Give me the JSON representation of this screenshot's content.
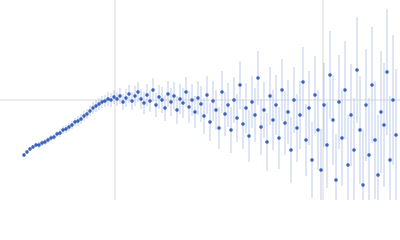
{
  "chart_data": {
    "type": "scatter",
    "xlim": [
      0,
      400
    ],
    "ylim": [
      0,
      200
    ],
    "xgrid": [
      115,
      323
    ],
    "ygrid": [
      100
    ],
    "color": "#3a62b8",
    "error_color": "#bccbe8",
    "x": [
      24,
      27,
      30,
      33,
      36,
      39,
      42,
      45,
      48,
      51,
      54,
      57,
      60,
      63,
      66,
      69,
      72,
      75,
      78,
      81,
      84,
      87,
      90,
      93,
      96,
      99,
      102,
      105,
      108,
      111,
      114,
      117,
      120,
      123,
      126,
      129,
      132,
      135,
      138,
      141,
      144,
      147,
      150,
      153,
      156,
      159,
      162,
      165,
      168,
      171,
      174,
      177,
      180,
      183,
      186,
      189,
      192,
      195,
      198,
      201,
      204,
      207,
      210,
      213,
      216,
      219,
      222,
      225,
      228,
      231,
      234,
      237,
      240,
      243,
      246,
      249,
      252,
      255,
      258,
      261,
      264,
      267,
      270,
      273,
      276,
      279,
      282,
      285,
      288,
      291,
      294,
      297,
      300,
      303,
      306,
      309,
      312,
      315,
      318,
      321,
      324,
      327,
      330,
      333,
      336,
      339,
      342,
      345,
      348,
      351,
      354,
      357,
      360,
      363,
      366,
      369,
      372,
      375,
      378,
      381,
      384,
      387,
      390,
      393,
      396
    ],
    "values": [
      45,
      48,
      51,
      53,
      55,
      55,
      57,
      58,
      60,
      62,
      63,
      66,
      67,
      70,
      71,
      73,
      75,
      78,
      79,
      81,
      84,
      86,
      89,
      92,
      94,
      96,
      98,
      99,
      101,
      100,
      103,
      101,
      104,
      98,
      102,
      106,
      99,
      104,
      108,
      101,
      97,
      105,
      99,
      110,
      95,
      103,
      100,
      92,
      106,
      98,
      104,
      90,
      101,
      97,
      108,
      93,
      100,
      88,
      102,
      96,
      84,
      105,
      78,
      99,
      90,
      72,
      108,
      86,
      95,
      70,
      100,
      82,
      115,
      76,
      92,
      64,
      98,
      85,
      122,
      73,
      90,
      58,
      104,
      80,
      95,
      62,
      110,
      77,
      88,
      50,
      100,
      72,
      85,
      118,
      60,
      92,
      40,
      105,
      70,
      30,
      95,
      55,
      125,
      80,
      20,
      98,
      62,
      110,
      35,
      85,
      50,
      130,
      70,
      15,
      95,
      45,
      115,
      60,
      25,
      88,
      75,
      128,
      40,
      100,
      65
    ],
    "errors": [
      2,
      2,
      2,
      2,
      2,
      3,
      3,
      3,
      3,
      3,
      3,
      3,
      4,
      4,
      4,
      4,
      4,
      4,
      5,
      5,
      5,
      5,
      5,
      6,
      6,
      6,
      6,
      6,
      7,
      7,
      7,
      7,
      8,
      8,
      9,
      9,
      9,
      10,
      10,
      10,
      11,
      11,
      11,
      12,
      12,
      12,
      13,
      13,
      13,
      14,
      14,
      14,
      15,
      15,
      15,
      16,
      16,
      16,
      17,
      18,
      18,
      19,
      19,
      20,
      20,
      21,
      21,
      22,
      22,
      23,
      23,
      24,
      24,
      25,
      25,
      26,
      26,
      27,
      27,
      28,
      28,
      29,
      29,
      30,
      30,
      31,
      31,
      32,
      32,
      33,
      33,
      34,
      34,
      35,
      36,
      37,
      38,
      39,
      40,
      41,
      42,
      43,
      44,
      45,
      46,
      47,
      48,
      49,
      50,
      51,
      52,
      53,
      54,
      55,
      56,
      57,
      58,
      59,
      60,
      61,
      62,
      63,
      64,
      65,
      66
    ]
  }
}
